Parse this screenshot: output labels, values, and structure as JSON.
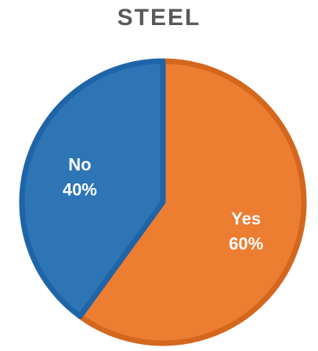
{
  "chart_data": {
    "type": "pie",
    "title": "STEEL",
    "slices": [
      {
        "label": "Yes",
        "value": 60,
        "value_label": "60%",
        "color": "#ED7D31",
        "border": "#D4671E"
      },
      {
        "label": "No",
        "value": 40,
        "value_label": "40%",
        "color": "#2E75B6",
        "border": "#1F64A8"
      }
    ],
    "start_angle_deg": 0,
    "direction": "clockwise",
    "legend": "none",
    "data_labels": "inside"
  }
}
